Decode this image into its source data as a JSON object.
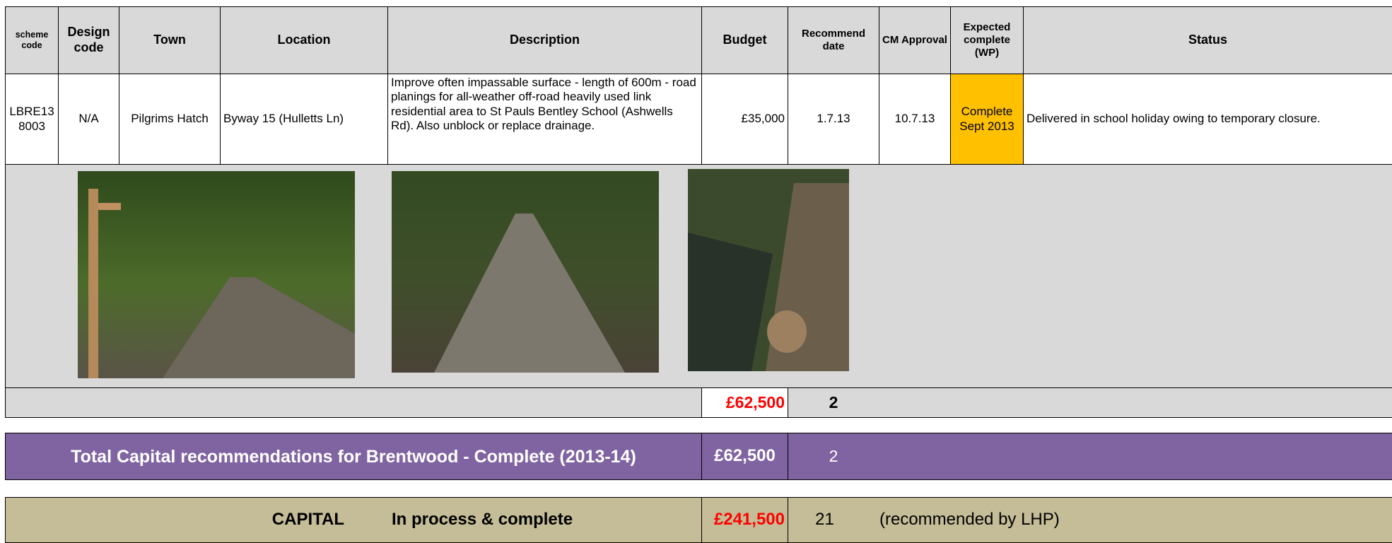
{
  "table": {
    "header": [
      "scheme code",
      "Design code",
      "Town",
      "Location",
      "Description",
      "Budget",
      "Recommend date",
      "CM Approval",
      "Expected complete (WP)",
      "Status"
    ],
    "rows": [
      [
        "LBRE138003",
        "N/A",
        "Pilgrims Hatch",
        "Byway 15 (Hulletts Ln)",
        "Improve often impassable surface -  length of 600m - road planings for all-weather off-road heavily used link residential area to St Pauls Bentley School (Ashwells Rd). Also unblock or replace drainage.",
        "£35,000",
        "1.7.13",
        "10.7.13",
        "Complete Sept 2013",
        "Delivered in school holiday owing to temporary closure."
      ]
    ]
  },
  "subtotal": {
    "budget": "£62,500",
    "count": "2"
  },
  "total": {
    "label": "Total Capital recommendations for Brentwood - Complete (2013-14)",
    "budget": "£62,500",
    "count": "2"
  },
  "capital": {
    "label": "CAPITAL",
    "stage": "In process & complete",
    "budget": "£241,500",
    "count": "21",
    "note": "(recommended by LHP)"
  }
}
